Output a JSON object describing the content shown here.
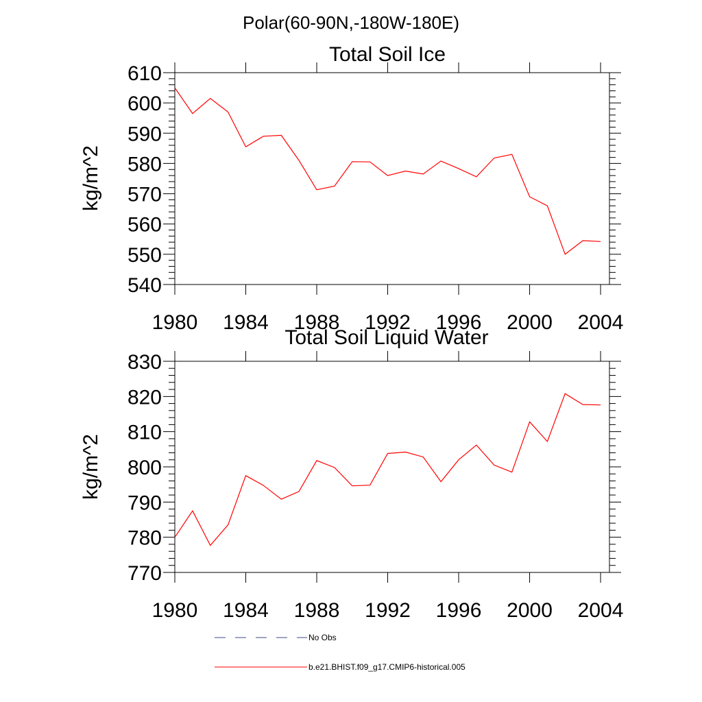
{
  "figure_title": "Polar(60-90N,-180W-180E)",
  "legend": [
    {
      "label": "No Obs",
      "color": "#3b4a8a",
      "style": "dashed"
    },
    {
      "label": "b.e21.BHIST.f09_g17.CMIP6-historical.005",
      "color": "#ff0000",
      "style": "solid"
    }
  ],
  "chart_data": [
    {
      "type": "line",
      "title": "Total Soil Ice",
      "xlabel": "",
      "ylabel": "kg/m^2",
      "xlim": [
        1980,
        2004.5
      ],
      "ylim": [
        540,
        610
      ],
      "grid": false,
      "x_ticks": [
        1980,
        1984,
        1988,
        1992,
        1996,
        2000,
        2004
      ],
      "y_ticks": [
        540,
        550,
        560,
        570,
        580,
        590,
        600,
        610
      ],
      "x": [
        1980,
        1981,
        1982,
        1983,
        1984,
        1985,
        1986,
        1987,
        1988,
        1989,
        1990,
        1991,
        1992,
        1993,
        1994,
        1995,
        1996,
        1997,
        1998,
        1999,
        2000,
        2001,
        2002,
        2003,
        2004
      ],
      "series": [
        {
          "color": "#ff0000",
          "values": [
            605.0,
            596.5,
            601.5,
            597.0,
            585.5,
            589.0,
            589.3,
            581.0,
            571.3,
            572.5,
            580.6,
            580.5,
            576.0,
            577.5,
            576.5,
            580.8,
            578.3,
            575.6,
            581.8,
            583.0,
            569.0,
            566.0,
            550.0,
            554.5,
            554.2
          ]
        }
      ]
    },
    {
      "type": "line",
      "title": "Total Soil Liquid Water",
      "xlabel": "",
      "ylabel": "kg/m^2",
      "xlim": [
        1980,
        2004.5
      ],
      "ylim": [
        770,
        830
      ],
      "grid": false,
      "x_ticks": [
        1980,
        1984,
        1988,
        1992,
        1996,
        2000,
        2004
      ],
      "y_ticks": [
        770,
        780,
        790,
        800,
        810,
        820,
        830
      ],
      "x": [
        1980,
        1981,
        1982,
        1983,
        1984,
        1985,
        1986,
        1987,
        1988,
        1989,
        1990,
        1991,
        1992,
        1993,
        1994,
        1995,
        1996,
        1997,
        1998,
        1999,
        2000,
        2001,
        2002,
        2003,
        2004
      ],
      "series": [
        {
          "color": "#ff0000",
          "values": [
            780.0,
            787.5,
            777.7,
            783.5,
            797.5,
            794.7,
            790.8,
            793.0,
            801.8,
            799.8,
            794.6,
            794.8,
            803.8,
            804.2,
            802.8,
            795.8,
            802.0,
            806.2,
            800.5,
            798.5,
            812.8,
            807.2,
            820.8,
            817.7,
            817.6
          ]
        }
      ]
    }
  ]
}
